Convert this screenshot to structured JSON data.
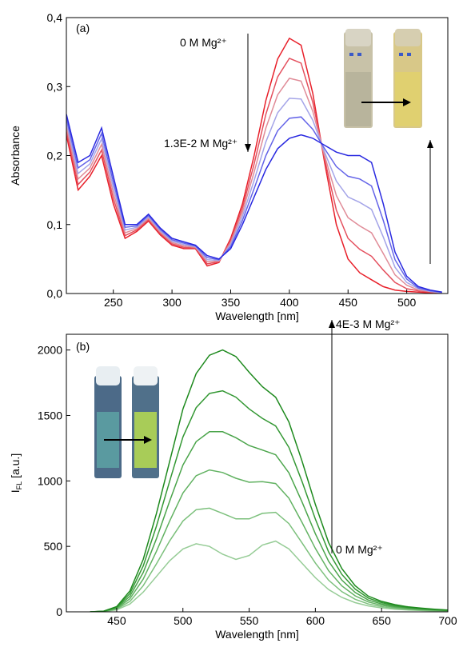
{
  "chart_data": [
    {
      "type": "line",
      "panel": "(a)",
      "xlabel": "Wavelength [nm]",
      "ylabel": [
        "Absorbance"
      ],
      "xlim": [
        210,
        535
      ],
      "ylim": [
        0,
        0.4
      ],
      "xticks": [
        250,
        300,
        350,
        400,
        450,
        500
      ],
      "yticks": [
        {
          "value": 0,
          "label": "0,0"
        },
        {
          "value": 0.1,
          "label": "0,1"
        },
        {
          "value": 0.2,
          "label": "0,2"
        },
        {
          "value": 0.3,
          "label": "0,3"
        },
        {
          "value": 0.4,
          "label": "0,4"
        }
      ],
      "annotations": [
        "0 M Mg²⁺",
        "1.3E-2 M Mg²⁺"
      ],
      "x": [
        210,
        220,
        230,
        240,
        250,
        260,
        270,
        280,
        290,
        300,
        310,
        320,
        330,
        340,
        350,
        360,
        370,
        380,
        390,
        400,
        410,
        420,
        430,
        440,
        450,
        460,
        470,
        480,
        490,
        500,
        510,
        520,
        530
      ],
      "series": [
        {
          "color": "#e8202a",
          "values": [
            0.23,
            0.15,
            0.17,
            0.2,
            0.13,
            0.08,
            0.09,
            0.105,
            0.085,
            0.07,
            0.065,
            0.065,
            0.04,
            0.045,
            0.08,
            0.13,
            0.2,
            0.28,
            0.34,
            0.37,
            0.36,
            0.29,
            0.19,
            0.1,
            0.05,
            0.03,
            0.02,
            0.01,
            0.005,
            0.003,
            0.002,
            0.001,
            0.0
          ]
        },
        {
          "color": "#e4505e",
          "values": [
            0.236,
            0.158,
            0.176,
            0.208,
            0.138,
            0.084,
            0.092,
            0.107,
            0.087,
            0.072,
            0.067,
            0.066,
            0.043,
            0.046,
            0.077,
            0.124,
            0.188,
            0.26,
            0.314,
            0.341,
            0.334,
            0.277,
            0.195,
            0.121,
            0.08,
            0.064,
            0.054,
            0.034,
            0.016,
            0.007,
            0.004,
            0.002,
            0.0
          ]
        },
        {
          "color": "#e08c98",
          "values": [
            0.242,
            0.166,
            0.182,
            0.216,
            0.146,
            0.088,
            0.094,
            0.109,
            0.089,
            0.074,
            0.069,
            0.067,
            0.046,
            0.047,
            0.074,
            0.118,
            0.176,
            0.24,
            0.288,
            0.312,
            0.308,
            0.264,
            0.2,
            0.142,
            0.11,
            0.098,
            0.088,
            0.058,
            0.027,
            0.012,
            0.005,
            0.003,
            0.001
          ]
        },
        {
          "color": "#a4a4e8",
          "values": [
            0.248,
            0.174,
            0.188,
            0.224,
            0.154,
            0.092,
            0.096,
            0.111,
            0.091,
            0.076,
            0.071,
            0.068,
            0.049,
            0.048,
            0.071,
            0.112,
            0.164,
            0.22,
            0.262,
            0.283,
            0.282,
            0.251,
            0.205,
            0.163,
            0.14,
            0.132,
            0.122,
            0.082,
            0.038,
            0.016,
            0.007,
            0.003,
            0.001
          ]
        },
        {
          "color": "#6464e8",
          "values": [
            0.254,
            0.182,
            0.194,
            0.232,
            0.162,
            0.096,
            0.098,
            0.113,
            0.093,
            0.078,
            0.073,
            0.069,
            0.052,
            0.049,
            0.068,
            0.106,
            0.152,
            0.2,
            0.236,
            0.254,
            0.256,
            0.238,
            0.21,
            0.184,
            0.17,
            0.166,
            0.156,
            0.106,
            0.049,
            0.021,
            0.008,
            0.004,
            0.002
          ]
        },
        {
          "color": "#2828e0",
          "values": [
            0.26,
            0.19,
            0.2,
            0.24,
            0.17,
            0.1,
            0.1,
            0.115,
            0.095,
            0.08,
            0.075,
            0.07,
            0.055,
            0.05,
            0.065,
            0.1,
            0.14,
            0.18,
            0.21,
            0.225,
            0.23,
            0.225,
            0.215,
            0.205,
            0.2,
            0.2,
            0.19,
            0.13,
            0.06,
            0.025,
            0.01,
            0.005,
            0.002
          ]
        }
      ]
    },
    {
      "type": "line",
      "panel": "(b)",
      "xlabel": "Wavelength [nm]",
      "ylabel": [
        "I",
        "FL",
        " [a.u.]"
      ],
      "xlim": [
        412,
        700
      ],
      "ylim": [
        0,
        2120
      ],
      "xticks": [
        450,
        500,
        550,
        600,
        650,
        700
      ],
      "yticks": [
        0,
        500,
        1000,
        1500,
        2000
      ],
      "annotations": [
        "4E-3 M Mg²⁺",
        "0 M Mg²⁺"
      ],
      "x": [
        430,
        440,
        450,
        460,
        470,
        480,
        490,
        500,
        510,
        520,
        530,
        540,
        550,
        560,
        570,
        580,
        590,
        600,
        610,
        620,
        630,
        640,
        650,
        660,
        670,
        680,
        690,
        700
      ],
      "series": [
        {
          "color": "#96cc96",
          "values": [
            0,
            2,
            15,
            60,
            150,
            270,
            390,
            480,
            520,
            500,
            440,
            400,
            430,
            510,
            540,
            480,
            370,
            260,
            170,
            110,
            70,
            45,
            30,
            20,
            14,
            10,
            7,
            5
          ]
        },
        {
          "color": "#7cc07c",
          "values": [
            0,
            3,
            20,
            80,
            200,
            366,
            542,
            694,
            780,
            792,
            752,
            710,
            710,
            752,
            760,
            674,
            526,
            372,
            242,
            154,
            96,
            60,
            40,
            27,
            19,
            14,
            10,
            7
          ]
        },
        {
          "color": "#62b262",
          "values": [
            0,
            3,
            25,
            100,
            250,
            462,
            694,
            908,
            1040,
            1084,
            1064,
            1020,
            990,
            994,
            980,
            868,
            682,
            484,
            314,
            198,
            122,
            75,
            50,
            34,
            24,
            17,
            12,
            9
          ]
        },
        {
          "color": "#4aa44a",
          "values": [
            0,
            4,
            30,
            120,
            300,
            558,
            846,
            1122,
            1300,
            1376,
            1376,
            1330,
            1270,
            1236,
            1200,
            1062,
            838,
            596,
            386,
            242,
            148,
            90,
            60,
            41,
            28,
            21,
            15,
            10
          ]
        },
        {
          "color": "#349834",
          "values": [
            0,
            4,
            35,
            140,
            350,
            654,
            998,
            1336,
            1560,
            1668,
            1688,
            1640,
            1550,
            1478,
            1420,
            1256,
            994,
            708,
            458,
            286,
            174,
            105,
            70,
            48,
            33,
            24,
            17,
            12
          ]
        },
        {
          "color": "#1e8a1e",
          "values": [
            0,
            5,
            40,
            160,
            400,
            750,
            1150,
            1550,
            1820,
            1960,
            2000,
            1950,
            1830,
            1720,
            1640,
            1450,
            1150,
            820,
            530,
            330,
            200,
            120,
            80,
            55,
            38,
            28,
            20,
            14
          ]
        }
      ]
    }
  ]
}
